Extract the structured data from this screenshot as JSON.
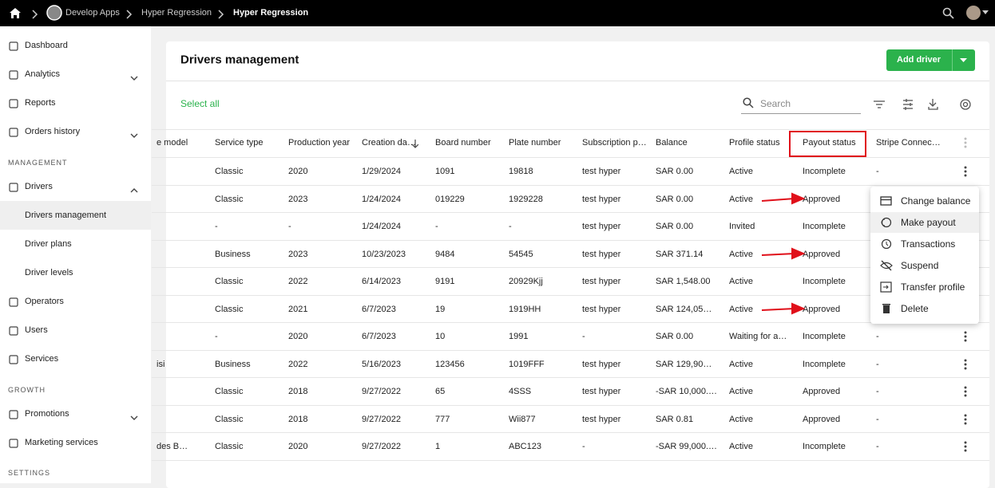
{
  "topbar": {
    "breadcrumbs": [
      "Develop Apps",
      "Hyper Regression",
      "Hyper Regression"
    ]
  },
  "sidebar": {
    "entries": [
      "Dashboard",
      "Analytics",
      "Reports",
      "Orders history",
      "MANAGEMENT",
      "Drivers",
      "Drivers management",
      "Driver plans",
      "Driver levels",
      "Operators",
      "Users",
      "Services",
      "GROWTH",
      "Promotions",
      "Marketing services",
      "SETTINGS"
    ]
  },
  "card": {
    "title": "Drivers management",
    "add_button": "Add driver",
    "select_all": "Select all",
    "search_placeholder": "Search"
  },
  "table": {
    "columns": [
      "e model",
      "Service type",
      "Production year",
      "Creation da…",
      "Board number",
      "Plate number",
      "Subscription p…",
      "Balance",
      "Profile status",
      "Payout status",
      "Stripe Connec…"
    ],
    "rows": [
      [
        null,
        "Classic",
        "2020",
        "1/29/2024",
        "1091",
        "19818",
        "test hyper",
        "SAR 0.00",
        "Active",
        "Incomplete",
        "-"
      ],
      [
        null,
        "Classic",
        "2023",
        "1/24/2024",
        "019229",
        "1929228",
        "test hyper",
        "SAR 0.00",
        "Active",
        "Approved",
        null
      ],
      [
        null,
        "-",
        "-",
        "1/24/2024",
        "-",
        "-",
        "test hyper",
        "SAR 0.00",
        "Invited",
        "Incomplete",
        null
      ],
      [
        null,
        "Business",
        "2023",
        "10/23/2023",
        "9484",
        "54545",
        "test hyper",
        "SAR 371.14",
        "Active",
        "Approved",
        null
      ],
      [
        null,
        "Classic",
        "2022",
        "6/14/2023",
        "9191",
        "20929Kjj",
        "test hyper",
        "SAR 1,548.00",
        "Active",
        "Incomplete",
        null
      ],
      [
        null,
        "Classic",
        "2021",
        "6/7/2023",
        "19",
        "1919HH",
        "test hyper",
        "SAR 124,05…",
        "Active",
        "Approved",
        null
      ],
      [
        null,
        "-",
        "2020",
        "6/7/2023",
        "10",
        "1991",
        "-",
        "SAR 0.00",
        "Waiting for a…",
        "Incomplete",
        "-"
      ],
      [
        "isi",
        "Business",
        "2022",
        "5/16/2023",
        "123456",
        "1019FFF",
        "test hyper",
        "SAR 129,90…",
        "Active",
        "Incomplete",
        "-"
      ],
      [
        null,
        "Classic",
        "2018",
        "9/27/2022",
        "65",
        "4SSS",
        "test hyper",
        "-SAR 10,000.…",
        "Active",
        "Approved",
        "-"
      ],
      [
        null,
        "Classic",
        "2018",
        "9/27/2022",
        "777",
        "Wii877",
        "test hyper",
        "SAR 0.81",
        "Active",
        "Approved",
        "-"
      ],
      [
        "des B…",
        "Classic",
        "2020",
        "9/27/2022",
        "1",
        "ABC123",
        "-",
        "-SAR 99,000.…",
        "Active",
        "Incomplete",
        "-"
      ]
    ]
  },
  "menu": {
    "items": [
      "Change balance",
      "Make payout",
      "Transactions",
      "Suspend",
      "Transfer profile",
      "Delete"
    ]
  }
}
